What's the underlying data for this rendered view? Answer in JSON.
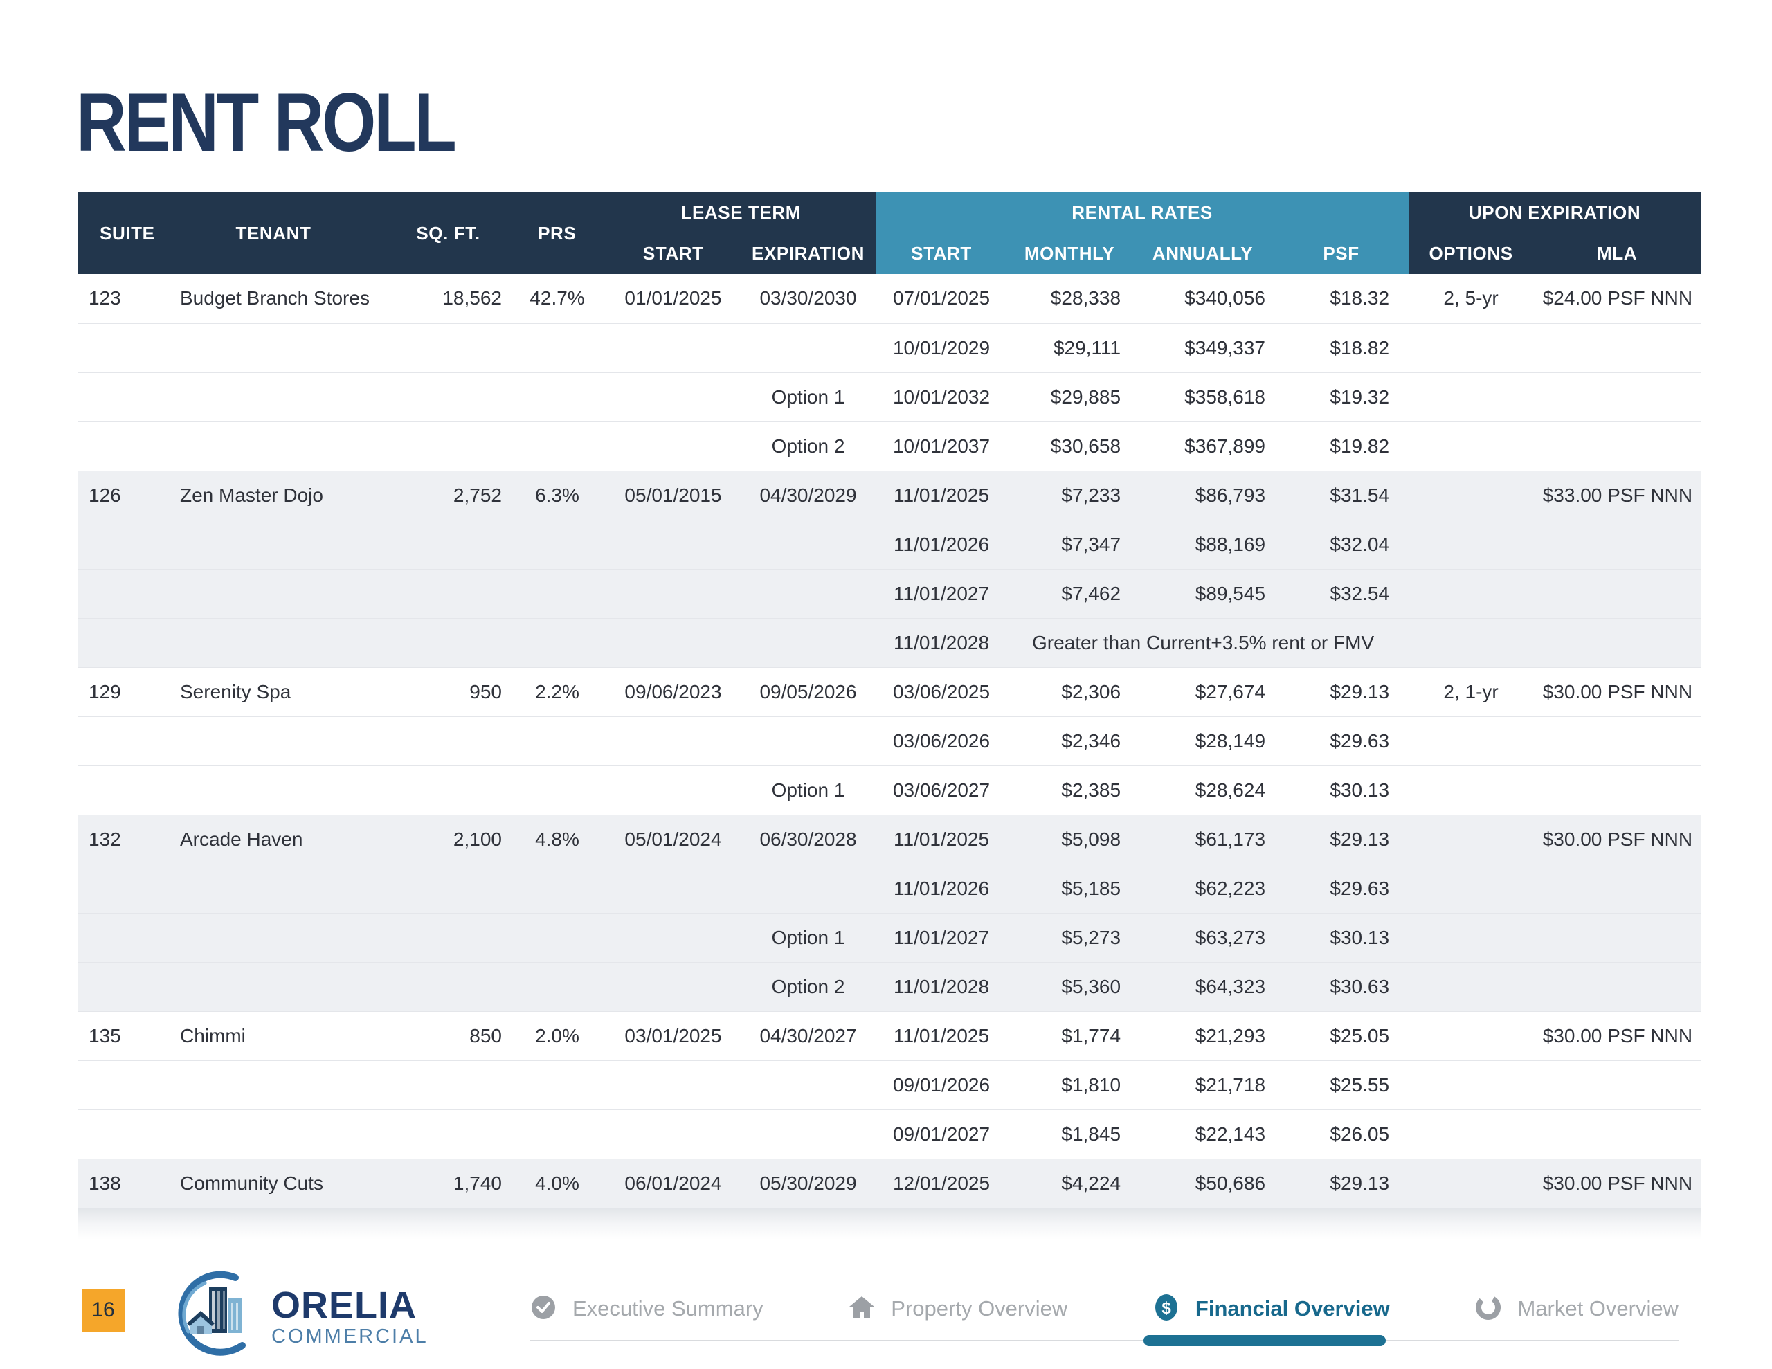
{
  "page": {
    "title": "RENT ROLL",
    "page_number": "16"
  },
  "brand": {
    "name": "ORELIA",
    "division": "COMMERCIAL"
  },
  "colors": {
    "navy": "#22364c",
    "blue": "#3d92b4",
    "teal": "#1d7193",
    "orange": "#f5a62a"
  },
  "table": {
    "headers": {
      "suite": "SUITE",
      "tenant": "TENANT",
      "sqft": "SQ. FT.",
      "prs": "PRS",
      "lease_term": "LEASE TERM",
      "rental_rates": "RENTAL RATES",
      "upon_expiration": "UPON EXPIRATION",
      "lt_start": "START",
      "lt_expiration": "EXPIRATION",
      "rr_start": "START",
      "monthly": "MONTHLY",
      "annually": "ANNUALLY",
      "psf": "PSF",
      "options": "OPTIONS",
      "mla": "MLA"
    },
    "tenants": [
      {
        "suite": "123",
        "tenant": "Budget Branch Stores",
        "sqft": "18,562",
        "prs": "42.7%",
        "lease_start": "01/01/2025",
        "lease_expiration": "03/30/2030",
        "options": "2, 5-yr",
        "mla": "$24.00 PSF NNN",
        "shaded": false,
        "rows": [
          {
            "start": "07/01/2025",
            "monthly": "$28,338",
            "annually": "$340,056",
            "psf": "$18.32"
          },
          {
            "start": "10/01/2029",
            "monthly": "$29,111",
            "annually": "$349,337",
            "psf": "$18.82"
          },
          {
            "option_label": "Option 1",
            "start": "10/01/2032",
            "monthly": "$29,885",
            "annually": "$358,618",
            "psf": "$19.32"
          },
          {
            "option_label": "Option 2",
            "start": "10/01/2037",
            "monthly": "$30,658",
            "annually": "$367,899",
            "psf": "$19.82"
          }
        ]
      },
      {
        "suite": "126",
        "tenant": "Zen Master Dojo",
        "sqft": "2,752",
        "prs": "6.3%",
        "lease_start": "05/01/2015",
        "lease_expiration": "04/30/2029",
        "options": "",
        "mla": "$33.00 PSF NNN",
        "shaded": true,
        "rows": [
          {
            "start": "11/01/2025",
            "monthly": "$7,233",
            "annually": "$86,793",
            "psf": "$31.54"
          },
          {
            "start": "11/01/2026",
            "monthly": "$7,347",
            "annually": "$88,169",
            "psf": "$32.04"
          },
          {
            "start": "11/01/2027",
            "monthly": "$7,462",
            "annually": "$89,545",
            "psf": "$32.54"
          },
          {
            "start": "11/01/2028",
            "note": "Greater than Current+3.5% rent or FMV"
          }
        ]
      },
      {
        "suite": "129",
        "tenant": "Serenity Spa",
        "sqft": "950",
        "prs": "2.2%",
        "lease_start": "09/06/2023",
        "lease_expiration": "09/05/2026",
        "options": "2, 1-yr",
        "mla": "$30.00 PSF NNN",
        "shaded": false,
        "rows": [
          {
            "start": "03/06/2025",
            "monthly": "$2,306",
            "annually": "$27,674",
            "psf": "$29.13"
          },
          {
            "start": "03/06/2026",
            "monthly": "$2,346",
            "annually": "$28,149",
            "psf": "$29.63"
          },
          {
            "option_label": "Option 1",
            "start": "03/06/2027",
            "monthly": "$2,385",
            "annually": "$28,624",
            "psf": "$30.13"
          }
        ]
      },
      {
        "suite": "132",
        "tenant": "Arcade Haven",
        "sqft": "2,100",
        "prs": "4.8%",
        "lease_start": "05/01/2024",
        "lease_expiration": "06/30/2028",
        "options": "",
        "mla": "$30.00 PSF NNN",
        "shaded": true,
        "rows": [
          {
            "start": "11/01/2025",
            "monthly": "$5,098",
            "annually": "$61,173",
            "psf": "$29.13"
          },
          {
            "start": "11/01/2026",
            "monthly": "$5,185",
            "annually": "$62,223",
            "psf": "$29.63"
          },
          {
            "option_label": "Option 1",
            "start": "11/01/2027",
            "monthly": "$5,273",
            "annually": "$63,273",
            "psf": "$30.13"
          },
          {
            "option_label": "Option 2",
            "start": "11/01/2028",
            "monthly": "$5,360",
            "annually": "$64,323",
            "psf": "$30.63"
          }
        ]
      },
      {
        "suite": "135",
        "tenant": "Chimmi",
        "sqft": "850",
        "prs": "2.0%",
        "lease_start": "03/01/2025",
        "lease_expiration": "04/30/2027",
        "options": "",
        "mla": "$30.00 PSF NNN",
        "shaded": false,
        "rows": [
          {
            "start": "11/01/2025",
            "monthly": "$1,774",
            "annually": "$21,293",
            "psf": "$25.05"
          },
          {
            "start": "09/01/2026",
            "monthly": "$1,810",
            "annually": "$21,718",
            "psf": "$25.55"
          },
          {
            "start": "09/01/2027",
            "monthly": "$1,845",
            "annually": "$22,143",
            "psf": "$26.05"
          }
        ]
      },
      {
        "suite": "138",
        "tenant": "Community Cuts",
        "sqft": "1,740",
        "prs": "4.0%",
        "lease_start": "06/01/2024",
        "lease_expiration": "05/30/2029",
        "options": "",
        "mla": "$30.00 PSF NNN",
        "shaded": true,
        "rows": [
          {
            "start": "12/01/2025",
            "monthly": "$4,224",
            "annually": "$50,686",
            "psf": "$29.13"
          }
        ]
      }
    ]
  },
  "footer": {
    "nav": [
      {
        "label": "Executive Summary",
        "icon": "check-circle-icon",
        "active": false
      },
      {
        "label": "Property Overview",
        "icon": "home-icon",
        "active": false
      },
      {
        "label": "Financial Overview",
        "icon": "dollar-circle-icon",
        "active": true
      },
      {
        "label": "Market Overview",
        "icon": "donut-icon",
        "active": false
      }
    ]
  }
}
